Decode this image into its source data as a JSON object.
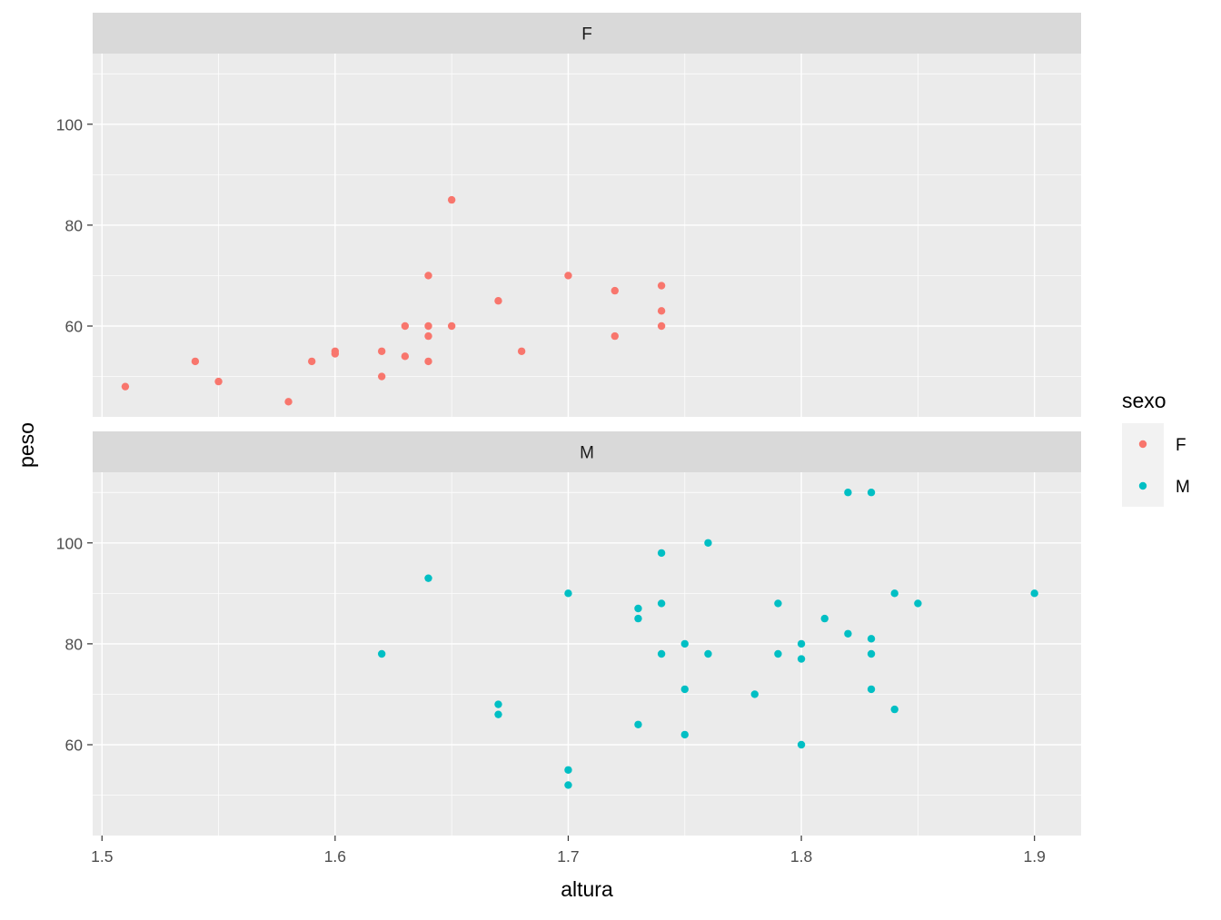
{
  "chart_data": {
    "type": "scatter",
    "facet_by": "sexo",
    "xlabel": "altura",
    "ylabel": "peso",
    "xlim": [
      1.496,
      1.92
    ],
    "ylim": [
      42,
      114
    ],
    "x_ticks": [
      1.5,
      1.6,
      1.7,
      1.8,
      1.9
    ],
    "x_tick_labels": [
      "1.5",
      "1.6",
      "1.7",
      "1.8",
      "1.9"
    ],
    "y_ticks": [
      60,
      80,
      100
    ],
    "y_tick_labels": [
      "60",
      "80",
      "100"
    ],
    "grid": true,
    "legend": {
      "title": "sexo",
      "position": "right",
      "entries": [
        {
          "label": "F",
          "color": "#F8766D"
        },
        {
          "label": "M",
          "color": "#00BFC4"
        }
      ]
    },
    "panels": [
      {
        "strip_label": "F",
        "series_name": "F",
        "color": "#F8766D",
        "points": [
          {
            "x": 1.51,
            "y": 48
          },
          {
            "x": 1.54,
            "y": 53
          },
          {
            "x": 1.55,
            "y": 49
          },
          {
            "x": 1.58,
            "y": 45
          },
          {
            "x": 1.59,
            "y": 53
          },
          {
            "x": 1.6,
            "y": 55
          },
          {
            "x": 1.6,
            "y": 54.5
          },
          {
            "x": 1.62,
            "y": 55
          },
          {
            "x": 1.62,
            "y": 50
          },
          {
            "x": 1.63,
            "y": 60
          },
          {
            "x": 1.63,
            "y": 54
          },
          {
            "x": 1.64,
            "y": 70
          },
          {
            "x": 1.64,
            "y": 60
          },
          {
            "x": 1.64,
            "y": 58
          },
          {
            "x": 1.64,
            "y": 53
          },
          {
            "x": 1.65,
            "y": 85
          },
          {
            "x": 1.65,
            "y": 60
          },
          {
            "x": 1.67,
            "y": 65
          },
          {
            "x": 1.68,
            "y": 55
          },
          {
            "x": 1.7,
            "y": 70
          },
          {
            "x": 1.72,
            "y": 67
          },
          {
            "x": 1.72,
            "y": 58
          },
          {
            "x": 1.74,
            "y": 68
          },
          {
            "x": 1.74,
            "y": 63
          },
          {
            "x": 1.74,
            "y": 60
          }
        ]
      },
      {
        "strip_label": "M",
        "series_name": "M",
        "color": "#00BFC4",
        "points": [
          {
            "x": 1.62,
            "y": 78
          },
          {
            "x": 1.64,
            "y": 93
          },
          {
            "x": 1.67,
            "y": 68
          },
          {
            "x": 1.67,
            "y": 66
          },
          {
            "x": 1.7,
            "y": 90
          },
          {
            "x": 1.7,
            "y": 55
          },
          {
            "x": 1.7,
            "y": 52
          },
          {
            "x": 1.73,
            "y": 87
          },
          {
            "x": 1.73,
            "y": 85
          },
          {
            "x": 1.73,
            "y": 64
          },
          {
            "x": 1.74,
            "y": 98
          },
          {
            "x": 1.74,
            "y": 88
          },
          {
            "x": 1.74,
            "y": 78
          },
          {
            "x": 1.75,
            "y": 80
          },
          {
            "x": 1.75,
            "y": 71
          },
          {
            "x": 1.75,
            "y": 62
          },
          {
            "x": 1.76,
            "y": 100
          },
          {
            "x": 1.76,
            "y": 78
          },
          {
            "x": 1.78,
            "y": 70
          },
          {
            "x": 1.79,
            "y": 88
          },
          {
            "x": 1.79,
            "y": 78
          },
          {
            "x": 1.8,
            "y": 80
          },
          {
            "x": 1.8,
            "y": 77
          },
          {
            "x": 1.8,
            "y": 60
          },
          {
            "x": 1.81,
            "y": 85
          },
          {
            "x": 1.82,
            "y": 110
          },
          {
            "x": 1.82,
            "y": 82
          },
          {
            "x": 1.83,
            "y": 110
          },
          {
            "x": 1.83,
            "y": 81
          },
          {
            "x": 1.83,
            "y": 78
          },
          {
            "x": 1.83,
            "y": 71
          },
          {
            "x": 1.84,
            "y": 90
          },
          {
            "x": 1.84,
            "y": 67
          },
          {
            "x": 1.85,
            "y": 88
          },
          {
            "x": 1.9,
            "y": 90
          }
        ]
      }
    ]
  }
}
